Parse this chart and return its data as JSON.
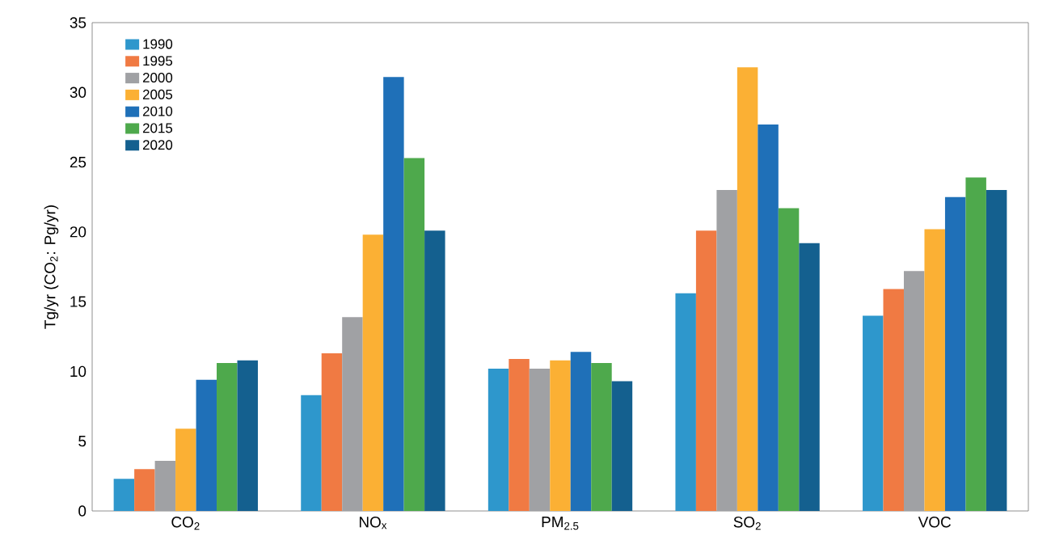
{
  "chart_data": {
    "type": "bar",
    "ylabel": "Tg/yr (CO$_{2}$: Pg/yr)",
    "categories": [
      "CO$_{2}$",
      "NO$_{x}$",
      "PM$_{2.5}$",
      "SO$_{2}$",
      "VOC"
    ],
    "series": [
      {
        "name": "1990",
        "color": "#2e97cc",
        "values": [
          2.3,
          8.3,
          10.2,
          15.6,
          14.0
        ]
      },
      {
        "name": "1995",
        "color": "#f07a43",
        "values": [
          3.0,
          11.3,
          10.9,
          20.1,
          15.9
        ]
      },
      {
        "name": "2000",
        "color": "#a0a1a4",
        "values": [
          3.6,
          13.9,
          10.2,
          23.0,
          17.2
        ]
      },
      {
        "name": "2005",
        "color": "#fbb034",
        "values": [
          5.9,
          19.8,
          10.8,
          31.8,
          20.2
        ]
      },
      {
        "name": "2010",
        "color": "#1f70b8",
        "values": [
          9.4,
          31.1,
          11.4,
          27.7,
          22.5
        ]
      },
      {
        "name": "2015",
        "color": "#4ea94c",
        "values": [
          10.6,
          25.3,
          10.6,
          21.7,
          23.9
        ]
      },
      {
        "name": "2020",
        "color": "#14608f",
        "values": [
          10.8,
          20.1,
          9.3,
          19.2,
          23.0
        ]
      }
    ],
    "ylim": [
      0,
      35
    ],
    "yticks": [
      0,
      5,
      10,
      15,
      20,
      25,
      30,
      35
    ],
    "grid": false,
    "legend": "top left"
  }
}
